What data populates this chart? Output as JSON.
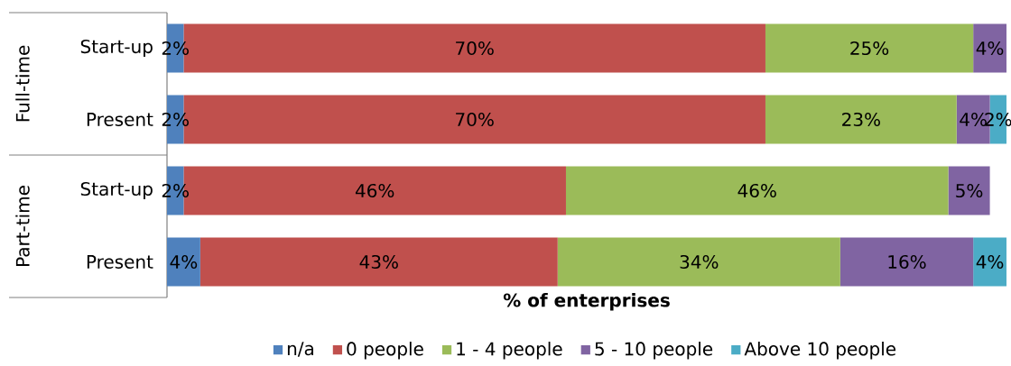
{
  "chart_data": {
    "type": "bar",
    "orientation": "horizontal",
    "stacked": true,
    "categories": [
      "Start-up",
      "Present",
      "Start-up",
      "Present"
    ],
    "annotations": [
      "Full-time",
      "Part-time"
    ],
    "xlabel": "% of enterprises",
    "xlim": [
      0,
      101
    ],
    "tick_labels": "y",
    "legend": "bottom",
    "series": [
      {
        "name": "n/a",
        "color": "#4f81bd",
        "values": [
          2,
          2,
          2,
          4
        ],
        "value_labels": [
          "2%",
          "2%",
          "2%",
          "4%"
        ]
      },
      {
        "name": "0 people",
        "color": "#c0504d",
        "values": [
          70,
          70,
          46,
          43
        ],
        "value_labels": [
          "70%",
          "70%",
          "46%",
          "43%"
        ]
      },
      {
        "name": "1 - 4 people",
        "color": "#9bbb59",
        "values": [
          25,
          23,
          46,
          34
        ],
        "value_labels": [
          "25%",
          "23%",
          "46%",
          "34%"
        ]
      },
      {
        "name": "5 - 10 people",
        "color": "#8064a2",
        "values": [
          4,
          4,
          5,
          16
        ],
        "value_labels": [
          "4%",
          "4%",
          "5%",
          "16%"
        ]
      },
      {
        "name": "Above 10 people",
        "color": "#4bacc6",
        "values": [
          null,
          2,
          null,
          4
        ],
        "value_labels": [
          null,
          "2%",
          null,
          "4%"
        ]
      }
    ]
  }
}
